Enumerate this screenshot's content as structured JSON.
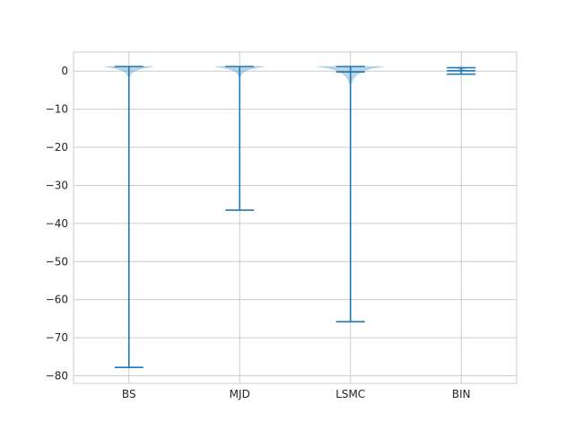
{
  "chart_data": {
    "type": "violin",
    "title": "",
    "xlabel": "",
    "ylabel": "",
    "ylim": [
      -82,
      5
    ],
    "grid": true,
    "y_ticks": [
      0,
      -10,
      -20,
      -30,
      -40,
      -50,
      -60,
      -70,
      -80
    ],
    "y_tick_labels": [
      "0",
      "−10",
      "−20",
      "−30",
      "−40",
      "−50",
      "−60",
      "−70",
      "−80"
    ],
    "categories": [
      "BS",
      "MJD",
      "LSMC",
      "BIN"
    ],
    "series": [
      {
        "category": "BS",
        "max": 1.2,
        "min": -77.8,
        "mean": 0.9,
        "body_halfwidth_frac": 0.22,
        "body_depth": 2.5
      },
      {
        "category": "MJD",
        "max": 1.2,
        "min": -36.5,
        "mean": 0.9,
        "body_halfwidth_frac": 0.22,
        "body_depth": 2.5
      },
      {
        "category": "LSMC",
        "max": 1.2,
        "min": -65.8,
        "mean": -0.2,
        "body_halfwidth_frac": 0.3,
        "body_depth": 4.5
      },
      {
        "category": "BIN",
        "max": 0.9,
        "min": -0.8,
        "mean": 0.1,
        "body_halfwidth_frac": 0.05,
        "body_depth": 1.0
      }
    ],
    "colors": {
      "line": "#1f77b4",
      "body": "#1f77b4",
      "grid": "#cccccc",
      "frame": "#cccccc"
    }
  }
}
